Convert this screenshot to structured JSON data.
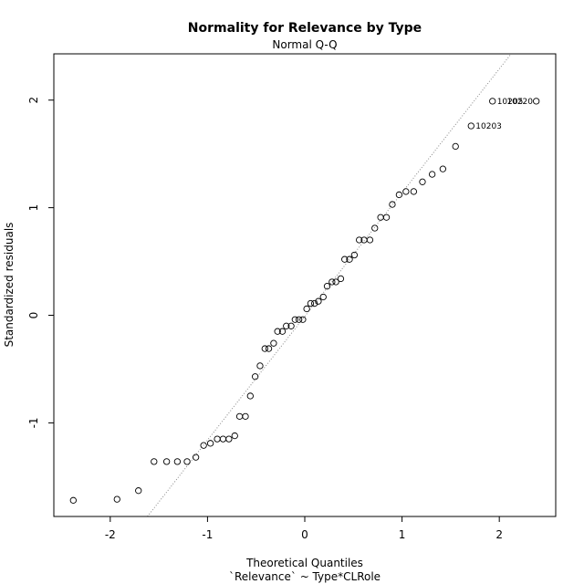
{
  "chart_data": {
    "type": "scatter",
    "title": "Normality for Relevance by Type",
    "subtitle": "Normal Q-Q",
    "xlabel": "Theoretical Quantiles",
    "xlabel2": "`Relevance` ~ Type*CLRole",
    "ylabel": "Standardized residuals",
    "xlim": [
      -2.58,
      2.58
    ],
    "ylim": [
      -1.87,
      2.43
    ],
    "xticks": [
      "-2",
      "-1",
      "0",
      "1",
      "2"
    ],
    "yticks": [
      "-1",
      "0",
      "1",
      "2"
    ],
    "grid": false,
    "reference_line": {
      "slope": 1.15,
      "intercept": -0.01
    },
    "points": [
      {
        "x": -2.38,
        "y": -1.72
      },
      {
        "x": -1.93,
        "y": -1.71
      },
      {
        "x": -1.71,
        "y": -1.63
      },
      {
        "x": -1.55,
        "y": -1.36
      },
      {
        "x": -1.42,
        "y": -1.36
      },
      {
        "x": -1.31,
        "y": -1.36
      },
      {
        "x": -1.21,
        "y": -1.36
      },
      {
        "x": -1.12,
        "y": -1.32
      },
      {
        "x": -1.04,
        "y": -1.21
      },
      {
        "x": -0.97,
        "y": -1.19
      },
      {
        "x": -0.9,
        "y": -1.15
      },
      {
        "x": -0.84,
        "y": -1.15
      },
      {
        "x": -0.78,
        "y": -1.15
      },
      {
        "x": -0.72,
        "y": -1.12
      },
      {
        "x": -0.67,
        "y": -0.94
      },
      {
        "x": -0.61,
        "y": -0.94
      },
      {
        "x": -0.56,
        "y": -0.75
      },
      {
        "x": -0.51,
        "y": -0.57
      },
      {
        "x": -0.46,
        "y": -0.47
      },
      {
        "x": -0.41,
        "y": -0.31
      },
      {
        "x": -0.37,
        "y": -0.31
      },
      {
        "x": -0.32,
        "y": -0.26
      },
      {
        "x": -0.28,
        "y": -0.15
      },
      {
        "x": -0.23,
        "y": -0.15
      },
      {
        "x": -0.19,
        "y": -0.1
      },
      {
        "x": -0.14,
        "y": -0.1
      },
      {
        "x": -0.1,
        "y": -0.04
      },
      {
        "x": -0.06,
        "y": -0.04
      },
      {
        "x": -0.02,
        "y": -0.04
      },
      {
        "x": 0.02,
        "y": 0.06
      },
      {
        "x": 0.06,
        "y": 0.11
      },
      {
        "x": 0.1,
        "y": 0.11
      },
      {
        "x": 0.14,
        "y": 0.13
      },
      {
        "x": 0.19,
        "y": 0.17
      },
      {
        "x": 0.23,
        "y": 0.27
      },
      {
        "x": 0.28,
        "y": 0.31
      },
      {
        "x": 0.32,
        "y": 0.31
      },
      {
        "x": 0.37,
        "y": 0.34
      },
      {
        "x": 0.41,
        "y": 0.52
      },
      {
        "x": 0.46,
        "y": 0.52
      },
      {
        "x": 0.51,
        "y": 0.56
      },
      {
        "x": 0.56,
        "y": 0.7
      },
      {
        "x": 0.61,
        "y": 0.7
      },
      {
        "x": 0.67,
        "y": 0.7
      },
      {
        "x": 0.72,
        "y": 0.81
      },
      {
        "x": 0.78,
        "y": 0.91
      },
      {
        "x": 0.84,
        "y": 0.91
      },
      {
        "x": 0.9,
        "y": 1.03
      },
      {
        "x": 0.97,
        "y": 1.12
      },
      {
        "x": 1.04,
        "y": 1.15
      },
      {
        "x": 1.12,
        "y": 1.15
      },
      {
        "x": 1.21,
        "y": 1.24
      },
      {
        "x": 1.31,
        "y": 1.31
      },
      {
        "x": 1.42,
        "y": 1.36
      },
      {
        "x": 1.55,
        "y": 1.57
      },
      {
        "x": 1.71,
        "y": 1.76
      },
      {
        "x": 1.93,
        "y": 1.99
      },
      {
        "x": 2.38,
        "y": 1.99
      }
    ],
    "labeled_points": [
      {
        "x": 1.71,
        "y": 1.76,
        "label": "10203"
      },
      {
        "x": 1.93,
        "y": 1.99,
        "label": "10205"
      },
      {
        "x": 2.03,
        "y": 1.99,
        "label": "10220"
      }
    ]
  }
}
